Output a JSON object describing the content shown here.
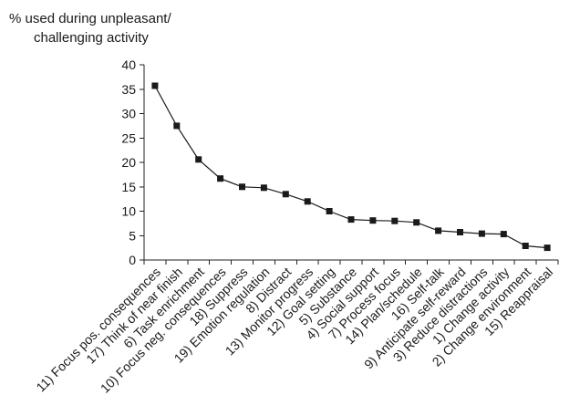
{
  "chart_data": {
    "type": "line",
    "title": "",
    "ylabel_lines": [
      "% used during unpleasant/",
      "challenging activity"
    ],
    "xlabel": "",
    "ylim": [
      0,
      40
    ],
    "yticks": [
      0,
      5,
      10,
      15,
      20,
      25,
      30,
      35,
      40
    ],
    "grid": false,
    "legend": "none",
    "categories": [
      "11) Focus pos. consequences",
      "17) Think of near finish",
      "6) Task enrichment",
      "10) Focus neg. consequences",
      "18) Suppress",
      "19) Emotion regulation",
      "8) Distract",
      "13) Monitor progress",
      "12) Goal setting",
      "5) Substance",
      "4) Social support",
      "7) Process focus",
      "14) Plan/schedule",
      "16) Self-talk",
      "9) Anticipate self-reward",
      "3) Reduce distractions",
      "1) Change activity",
      "2) Change environment",
      "15) Reappraisal"
    ],
    "series": [
      {
        "values": [
          35.7,
          27.5,
          20.6,
          16.7,
          15.0,
          14.8,
          13.5,
          12.0,
          10.0,
          8.3,
          8.1,
          8.0,
          7.7,
          6.0,
          5.7,
          5.4,
          5.3,
          2.9,
          2.5
        ],
        "color": "#1a1a1a",
        "marker": "square"
      }
    ]
  }
}
